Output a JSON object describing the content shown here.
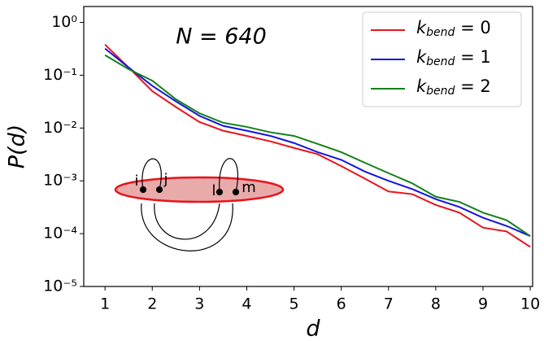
{
  "chart_data": {
    "type": "line",
    "annotation": "N = 640",
    "x_label": "d",
    "y_label": "P(d)",
    "x": [
      1,
      1.5,
      2,
      2.5,
      3,
      3.5,
      4,
      4.5,
      5,
      5.5,
      6,
      6.5,
      7,
      7.5,
      8,
      8.5,
      9,
      9.5,
      10
    ],
    "series": [
      {
        "name": "k_bend = 0",
        "color": "#e8141a",
        "values": [
          0.38,
          0.14,
          0.05,
          0.025,
          0.013,
          0.0089,
          0.0071,
          0.0056,
          0.0042,
          0.0032,
          0.0019,
          0.0011,
          0.00063,
          0.00056,
          0.00035,
          0.00025,
          0.00013,
          0.00011,
          5.6e-05
        ]
      },
      {
        "name": "k_bend = 1",
        "color": "#1414e0",
        "values": [
          0.32,
          0.14,
          0.063,
          0.032,
          0.017,
          0.011,
          0.0089,
          0.0071,
          0.0052,
          0.0035,
          0.0025,
          0.0015,
          0.001,
          0.0007,
          0.00045,
          0.00032,
          0.0002,
          0.00014,
          9e-05
        ]
      },
      {
        "name": "k_bend = 2",
        "color": "#14801a",
        "values": [
          0.24,
          0.13,
          0.079,
          0.035,
          0.019,
          0.0126,
          0.0105,
          0.0083,
          0.0071,
          0.005,
          0.0035,
          0.0022,
          0.0014,
          0.0009,
          0.0005,
          0.0004,
          0.00025,
          0.00018,
          9e-05
        ]
      }
    ],
    "xlim": [
      0.55,
      10.05
    ],
    "xticks": [
      1,
      2,
      3,
      4,
      5,
      6,
      7,
      8,
      9,
      10
    ],
    "ylim": [
      1e-05,
      2
    ],
    "yscale": "log",
    "yticks": [
      {
        "value": 1e-05,
        "label": "10⁻⁵"
      },
      {
        "value": 0.0001,
        "label": "10⁻⁴"
      },
      {
        "value": 0.001,
        "label": "10⁻³"
      },
      {
        "value": 0.01,
        "label": "10⁻²"
      },
      {
        "value": 0.1,
        "label": "10⁻¹"
      },
      {
        "value": 1,
        "label": "10⁰"
      }
    ],
    "legend": "upper right"
  },
  "inset": {
    "labels": [
      "i",
      "j",
      "l",
      "m"
    ]
  }
}
